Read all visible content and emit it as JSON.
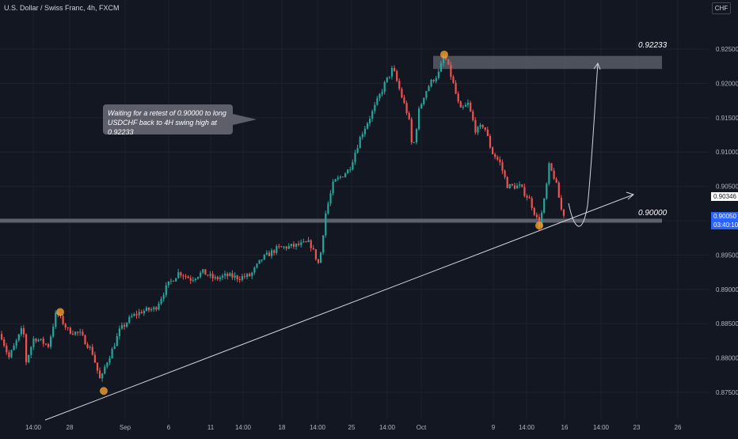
{
  "header": {
    "symbol_title": "U.S. Dollar / Swiss Franc, 4h, FXCM",
    "currency_button": "CHF"
  },
  "annotation": {
    "line1": "Waiting for a retest of 0.90000 to long",
    "line2": "USDCHF back to 4H swing high at 0.92233"
  },
  "levels": {
    "resistance_label": "0.92233",
    "support_label": "0.90000"
  },
  "price_scale": {
    "current_price": "0.90346",
    "last_price": "0.90050",
    "countdown": "03:40:10"
  },
  "colors": {
    "background": "#131722",
    "bull": "#26a69a",
    "bear": "#ef5350",
    "zone": "#5d606b",
    "marker": "#f0a030",
    "blue_label": "#2962ff"
  },
  "chart_data": {
    "type": "candlestick",
    "title": "U.S. Dollar / Swiss Franc, 4h, FXCM",
    "timeframe": "4h",
    "y_ticks": [
      "0.92500",
      "0.92000",
      "0.91500",
      "0.91000",
      "0.90500",
      "0.90000",
      "0.89500",
      "0.89000",
      "0.88500",
      "0.88000",
      "0.87500"
    ],
    "x_ticks": [
      "14:00",
      "28",
      "Sep",
      "6",
      "11",
      "14:00",
      "18",
      "14:00",
      "25",
      "14:00",
      "Oct",
      "9",
      "14:00",
      "16",
      "14:00",
      "23",
      "26"
    ],
    "ylim": [
      0.8725,
      0.9275
    ],
    "grid": true,
    "key_points": [
      {
        "x": "28",
        "y": 0.8867
      },
      {
        "x": "Sep",
        "y": 0.8752
      },
      {
        "x": "14:00",
        "y": 0.9222
      },
      {
        "x": "Oct",
        "y": 0.9242
      },
      {
        "x": "14:00",
        "y": 0.8993
      },
      {
        "x": "16",
        "y": 0.9002
      }
    ],
    "resistance_zone": [
      0.92233,
      0.924
    ],
    "support_level": 0.9,
    "current_price": 0.90346,
    "last_price": 0.9005
  }
}
